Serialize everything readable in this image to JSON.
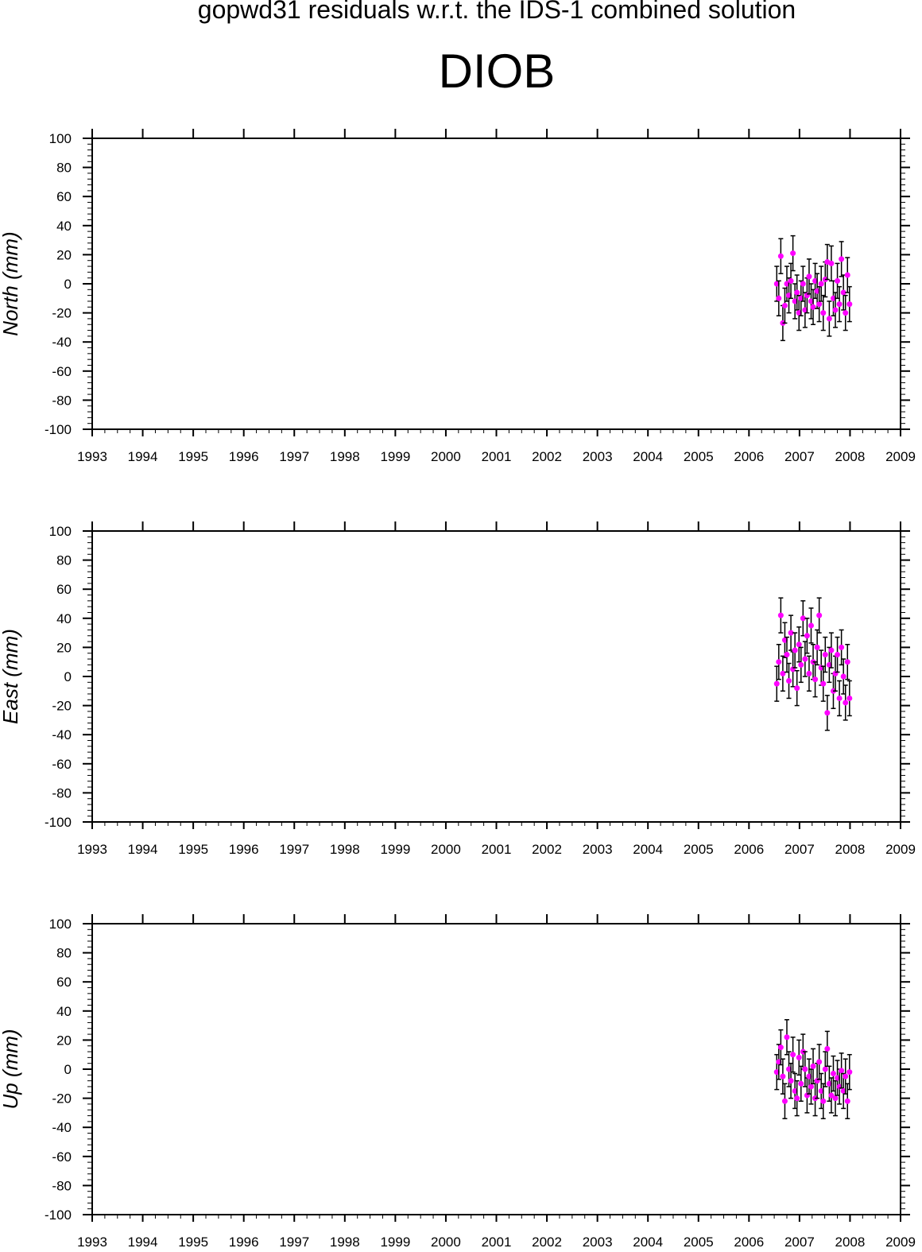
{
  "title": "gopwd31 residuals w.r.t. the IDS-1 combined solution",
  "station": "DIOB",
  "colors": {
    "point": "#ff00ff",
    "errorbar": "#000000",
    "axis": "#000000"
  },
  "chart_data": [
    {
      "type": "scatter",
      "ylabel": "North (mm)",
      "xlim": [
        1993,
        2009
      ],
      "ylim": [
        -100,
        100
      ],
      "xticks": [
        "1993",
        "1994",
        "1995",
        "1996",
        "1997",
        "1998",
        "1999",
        "2000",
        "2001",
        "2002",
        "2003",
        "2004",
        "2005",
        "2006",
        "2007",
        "2008",
        "2009"
      ],
      "yticks": [
        "100",
        "80",
        "60",
        "40",
        "20",
        "0",
        "-20",
        "-40",
        "-60",
        "-80",
        "-100"
      ],
      "grid": false,
      "series": [
        {
          "x": [
            2006.55,
            2006.59,
            2006.63,
            2006.67,
            2006.71,
            2006.75,
            2006.79,
            2006.83,
            2006.87,
            2006.91,
            2006.95,
            2006.99,
            2007.03,
            2007.07,
            2007.11,
            2007.15,
            2007.19,
            2007.23,
            2007.27,
            2007.31,
            2007.35,
            2007.39,
            2007.43,
            2007.47,
            2007.51,
            2007.55,
            2007.59,
            2007.63,
            2007.67,
            2007.71,
            2007.75,
            2007.79,
            2007.83,
            2007.87,
            2007.91,
            2007.95,
            2007.99
          ],
          "y": [
            0,
            -10,
            19,
            -27,
            -15,
            0,
            -8,
            2,
            21,
            -12,
            -6,
            -20,
            -10,
            0,
            -18,
            -8,
            5,
            -12,
            -16,
            2,
            -5,
            -14,
            0,
            -20,
            3,
            15,
            -24,
            14,
            -10,
            -18,
            2,
            -14,
            17,
            -6,
            -20,
            6,
            -14
          ],
          "err": [
            12,
            12,
            12,
            12,
            12,
            12,
            12,
            12,
            12,
            12,
            12,
            12,
            12,
            12,
            12,
            12,
            12,
            12,
            12,
            12,
            12,
            12,
            12,
            12,
            12,
            12,
            12,
            12,
            12,
            12,
            12,
            12,
            12,
            12,
            12,
            12,
            12
          ]
        }
      ]
    },
    {
      "type": "scatter",
      "ylabel": "East (mm)",
      "xlim": [
        1993,
        2009
      ],
      "ylim": [
        -100,
        100
      ],
      "xticks": [
        "1993",
        "1994",
        "1995",
        "1996",
        "1997",
        "1998",
        "1999",
        "2000",
        "2001",
        "2002",
        "2003",
        "2004",
        "2005",
        "2006",
        "2007",
        "2008",
        "2009"
      ],
      "yticks": [
        "100",
        "80",
        "60",
        "40",
        "20",
        "0",
        "-20",
        "-40",
        "-60",
        "-80",
        "-100"
      ],
      "grid": false,
      "series": [
        {
          "x": [
            2006.55,
            2006.59,
            2006.63,
            2006.67,
            2006.71,
            2006.75,
            2006.79,
            2006.83,
            2006.87,
            2006.91,
            2006.95,
            2006.99,
            2007.03,
            2007.07,
            2007.11,
            2007.15,
            2007.19,
            2007.23,
            2007.27,
            2007.31,
            2007.35,
            2007.39,
            2007.43,
            2007.47,
            2007.51,
            2007.55,
            2007.59,
            2007.63,
            2007.67,
            2007.71,
            2007.75,
            2007.79,
            2007.83,
            2007.87,
            2007.91,
            2007.95,
            2007.99
          ],
          "y": [
            -5,
            10,
            42,
            2,
            25,
            15,
            -3,
            30,
            5,
            18,
            -8,
            22,
            8,
            40,
            12,
            28,
            2,
            35,
            10,
            -2,
            20,
            42,
            6,
            -5,
            15,
            -25,
            8,
            18,
            -10,
            2,
            15,
            -15,
            20,
            0,
            -18,
            10,
            -15
          ],
          "err": [
            12,
            12,
            12,
            12,
            12,
            12,
            12,
            12,
            12,
            12,
            12,
            12,
            12,
            12,
            12,
            12,
            12,
            12,
            12,
            12,
            12,
            12,
            12,
            12,
            12,
            12,
            12,
            12,
            12,
            12,
            12,
            12,
            12,
            12,
            12,
            12,
            12
          ]
        }
      ]
    },
    {
      "type": "scatter",
      "ylabel": "Up (mm)",
      "xlim": [
        1993,
        2009
      ],
      "ylim": [
        -100,
        100
      ],
      "xticks": [
        "1993",
        "1994",
        "1995",
        "1996",
        "1997",
        "1998",
        "1999",
        "2000",
        "2001",
        "2002",
        "2003",
        "2004",
        "2005",
        "2006",
        "2007",
        "2008",
        "2009"
      ],
      "yticks": [
        "100",
        "80",
        "60",
        "40",
        "20",
        "0",
        "-20",
        "-40",
        "-60",
        "-80",
        "-100"
      ],
      "grid": false,
      "series": [
        {
          "x": [
            2006.55,
            2006.59,
            2006.63,
            2006.67,
            2006.71,
            2006.75,
            2006.79,
            2006.83,
            2006.87,
            2006.91,
            2006.95,
            2006.99,
            2007.03,
            2007.07,
            2007.11,
            2007.15,
            2007.19,
            2007.23,
            2007.27,
            2007.31,
            2007.35,
            2007.39,
            2007.43,
            2007.47,
            2007.51,
            2007.55,
            2007.59,
            2007.63,
            2007.67,
            2007.71,
            2007.75,
            2007.79,
            2007.83,
            2007.87,
            2007.91,
            2007.95,
            2007.99
          ],
          "y": [
            -2,
            5,
            15,
            -5,
            -22,
            22,
            0,
            -8,
            10,
            -15,
            -20,
            8,
            -10,
            12,
            0,
            -18,
            -5,
            -12,
            2,
            -20,
            -8,
            5,
            -15,
            -22,
            0,
            14,
            -10,
            -18,
            -3,
            -20,
            -6,
            -12,
            -1,
            -15,
            -5,
            -22,
            -2
          ],
          "err": [
            12,
            12,
            12,
            12,
            12,
            12,
            12,
            12,
            12,
            12,
            12,
            12,
            12,
            12,
            12,
            12,
            12,
            12,
            12,
            12,
            12,
            12,
            12,
            12,
            12,
            12,
            12,
            12,
            12,
            12,
            12,
            12,
            12,
            12,
            12,
            12,
            12
          ]
        }
      ]
    }
  ]
}
